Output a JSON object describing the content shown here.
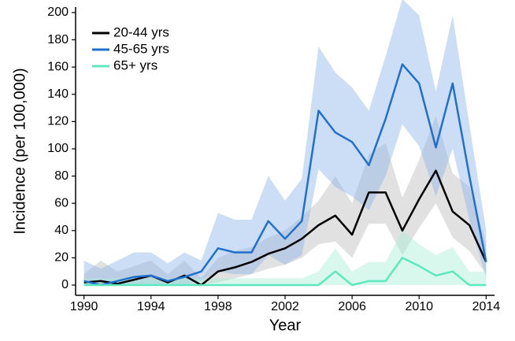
{
  "chart_data": {
    "type": "line",
    "x_label": "Year",
    "y_label": "Incidence (per 100,000)",
    "x": [
      1990,
      1991,
      1992,
      1993,
      1994,
      1995,
      1996,
      1997,
      1998,
      1999,
      2000,
      2001,
      2002,
      2003,
      2004,
      2005,
      2006,
      2007,
      2008,
      2009,
      2010,
      2011,
      2012,
      2013,
      2014
    ],
    "xlim": [
      1989.5,
      2014.5
    ],
    "xticks": [
      1990,
      1994,
      1998,
      2002,
      2006,
      2010,
      2014
    ],
    "ylim": [
      -7.5,
      204
    ],
    "yticks": [
      0,
      20,
      40,
      60,
      80,
      100,
      120,
      140,
      160,
      180,
      200
    ],
    "grid": false,
    "legend": "top-left",
    "series": [
      {
        "name": "20-44 yrs",
        "color": "#000000",
        "band_color": "#bdbdbd",
        "values": [
          2,
          3,
          1,
          4,
          7,
          2,
          7,
          0,
          10,
          13,
          17,
          23,
          27,
          34,
          44,
          51,
          37,
          68,
          68,
          40,
          63,
          84,
          54,
          44,
          17
        ],
        "upper": [
          8,
          18,
          10,
          14,
          18,
          8,
          18,
          5,
          20,
          25,
          28,
          35,
          40,
          50,
          62,
          80,
          60,
          96,
          104,
          64,
          92,
          124,
          82,
          72,
          30
        ],
        "lower": [
          0,
          0,
          0,
          0,
          0,
          0,
          0,
          0,
          2,
          5,
          8,
          12,
          15,
          20,
          30,
          32,
          20,
          45,
          45,
          22,
          42,
          60,
          35,
          25,
          8
        ]
      },
      {
        "name": "45-65 yrs",
        "color": "#1f6fcc",
        "band_color": "#8fb6e8",
        "values": [
          3,
          0,
          3,
          6,
          7,
          3,
          6,
          10,
          27,
          24,
          24,
          47,
          34,
          47,
          128,
          112,
          105,
          88,
          122,
          162,
          148,
          101,
          148,
          80,
          17
        ],
        "upper": [
          18,
          12,
          18,
          24,
          24,
          16,
          24,
          18,
          53,
          48,
          48,
          80,
          62,
          78,
          175,
          156,
          145,
          128,
          168,
          210,
          198,
          142,
          198,
          118,
          40
        ],
        "lower": [
          0,
          0,
          0,
          0,
          0,
          0,
          0,
          3,
          10,
          8,
          8,
          22,
          15,
          22,
          85,
          72,
          65,
          55,
          80,
          118,
          102,
          65,
          100,
          48,
          5
        ]
      },
      {
        "name": "65+ yrs",
        "color": "#5ee8bd",
        "band_color": "#a8efd6",
        "values": [
          0,
          0,
          0,
          0,
          0,
          0,
          0,
          0,
          0,
          0,
          0,
          0,
          0,
          0,
          0,
          10,
          0,
          3,
          3,
          20,
          14,
          7,
          10,
          0,
          0
        ],
        "upper": [
          5,
          5,
          5,
          5,
          5,
          5,
          5,
          5,
          5,
          5,
          5,
          5,
          5,
          5,
          10,
          27,
          10,
          17,
          17,
          40,
          30,
          22,
          28,
          10,
          10
        ],
        "lower": [
          0,
          0,
          0,
          0,
          0,
          0,
          0,
          0,
          0,
          0,
          0,
          0,
          0,
          0,
          0,
          0,
          0,
          0,
          0,
          0,
          0,
          0,
          0,
          0,
          0
        ]
      }
    ]
  }
}
